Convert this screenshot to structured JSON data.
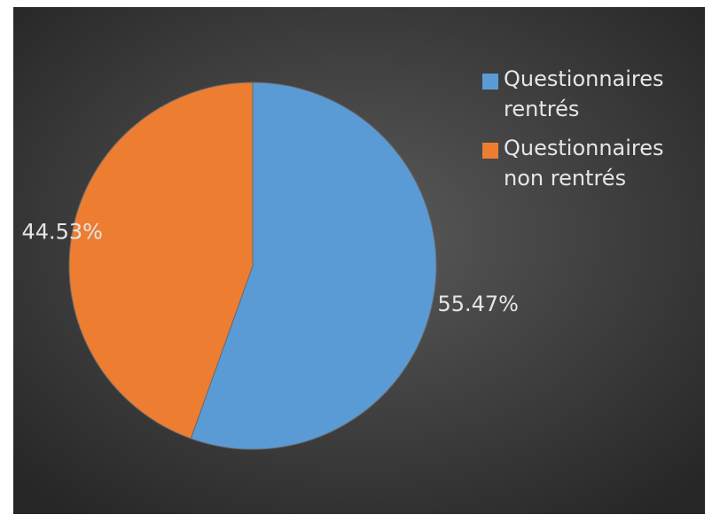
{
  "chart_data": {
    "type": "pie",
    "categories": [
      "Questionnaires rentrés",
      "Questionnaires non rentrés"
    ],
    "values": [
      55.47,
      44.53
    ],
    "value_labels": [
      "55.47%",
      "44.53%"
    ],
    "colors": [
      "#5b9bd5",
      "#ed7d31"
    ],
    "legend": "right"
  }
}
